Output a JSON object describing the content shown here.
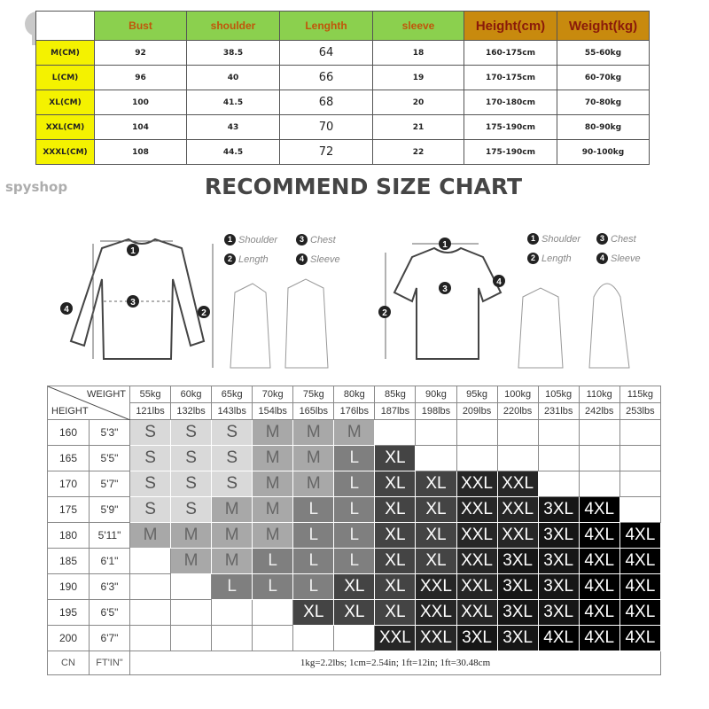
{
  "watermark": "spyshop",
  "measure_table": {
    "headers": [
      "",
      "Bust",
      "shoulder",
      "Lenghth",
      "sleeve",
      "Height(cm)",
      "Weight(kg)"
    ],
    "rows": [
      [
        "M(CM)",
        "92",
        "38.5",
        "64",
        "18",
        "160-175cm",
        "55-60kg"
      ],
      [
        "L(CM)",
        "96",
        "40",
        "66",
        "19",
        "170-175cm",
        "60-70kg"
      ],
      [
        "XL(CM)",
        "100",
        "41.5",
        "68",
        "20",
        "170-180cm",
        "70-80kg"
      ],
      [
        "XXL(CM)",
        "104",
        "43",
        "70",
        "21",
        "175-190cm",
        "80-90kg"
      ],
      [
        "XXXL(CM)",
        "108",
        "44.5",
        "72",
        "22",
        "175-190cm",
        "90-100kg"
      ]
    ]
  },
  "title": "RECOMMEND SIZE CHART",
  "legend_left": [
    {
      "n": "1",
      "label": "Shoulder"
    },
    {
      "n": "3",
      "label": "Chest"
    },
    {
      "n": "2",
      "label": "Length"
    },
    {
      "n": "4",
      "label": "Sleeve"
    }
  ],
  "legend_right": [
    {
      "n": "1",
      "label": "Shoulder"
    },
    {
      "n": "3",
      "label": "Chest"
    },
    {
      "n": "2",
      "label": "Length"
    },
    {
      "n": "4",
      "label": "Sleeve"
    }
  ],
  "size_table": {
    "weight_label": "WEIGHT",
    "height_label": "HEIGHT",
    "kg": [
      "55kg",
      "60kg",
      "65kg",
      "70kg",
      "75kg",
      "80kg",
      "85kg",
      "90kg",
      "95kg",
      "100kg",
      "105kg",
      "110kg",
      "115kg"
    ],
    "lbs": [
      "121lbs",
      "132lbs",
      "143lbs",
      "154lbs",
      "165lbs",
      "176lbs",
      "187lbs",
      "198lbs",
      "209lbs",
      "220lbs",
      "231lbs",
      "242lbs",
      "253lbs"
    ],
    "rows": [
      {
        "cm": "160",
        "ft": "5'3\"",
        "sizes": [
          "S",
          "S",
          "S",
          "M",
          "M",
          "M",
          "",
          "",
          "",
          "",
          "",
          "",
          ""
        ]
      },
      {
        "cm": "165",
        "ft": "5'5\"",
        "sizes": [
          "S",
          "S",
          "S",
          "M",
          "M",
          "L",
          "XL",
          "",
          "",
          "",
          "",
          "",
          ""
        ]
      },
      {
        "cm": "170",
        "ft": "5'7\"",
        "sizes": [
          "S",
          "S",
          "S",
          "M",
          "M",
          "L",
          "XL",
          "XL",
          "XXL",
          "XXL",
          "",
          "",
          ""
        ]
      },
      {
        "cm": "175",
        "ft": "5'9\"",
        "sizes": [
          "S",
          "S",
          "M",
          "M",
          "L",
          "L",
          "XL",
          "XL",
          "XXL",
          "XXL",
          "3XL",
          "4XL",
          ""
        ]
      },
      {
        "cm": "180",
        "ft": "5'11\"",
        "sizes": [
          "M",
          "M",
          "M",
          "M",
          "L",
          "L",
          "XL",
          "XL",
          "XXL",
          "XXL",
          "3XL",
          "4XL",
          "4XL"
        ]
      },
      {
        "cm": "185",
        "ft": "6'1\"",
        "sizes": [
          "",
          "M",
          "M",
          "L",
          "L",
          "L",
          "XL",
          "XL",
          "XXL",
          "3XL",
          "3XL",
          "4XL",
          "4XL"
        ]
      },
      {
        "cm": "190",
        "ft": "6'3\"",
        "sizes": [
          "",
          "",
          "L",
          "L",
          "L",
          "XL",
          "XL",
          "XXL",
          "XXL",
          "3XL",
          "3XL",
          "4XL",
          "4XL"
        ]
      },
      {
        "cm": "195",
        "ft": "6'5\"",
        "sizes": [
          "",
          "",
          "",
          "",
          "XL",
          "XL",
          "XL",
          "XXL",
          "XXL",
          "3XL",
          "3XL",
          "4XL",
          "4XL"
        ]
      },
      {
        "cm": "200",
        "ft": "6'7\"",
        "sizes": [
          "",
          "",
          "",
          "",
          "",
          "",
          "XXL",
          "XXL",
          "3XL",
          "3XL",
          "4XL",
          "4XL",
          "4XL"
        ]
      }
    ],
    "footer": {
      "cn": "CN",
      "ft": "FT'IN\"",
      "note": "1kg=2.2lbs; 1cm=2.54in; 1ft=12in; 1ft=30.48cm"
    }
  },
  "size_colors": {
    "S": "#d9d9d9",
    "M": "#a8a8a8",
    "L": "#7f7f7f",
    "XL": "#444444",
    "XXL": "#262626",
    "3XL": "#161616",
    "4XL": "#000000"
  }
}
